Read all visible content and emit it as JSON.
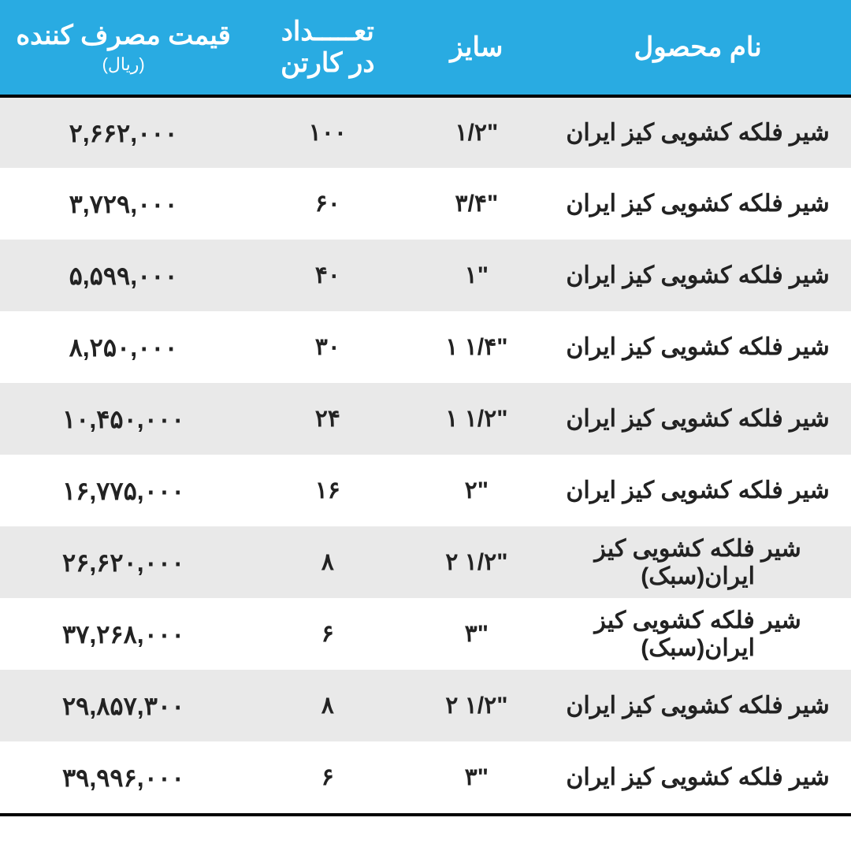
{
  "table": {
    "type": "table",
    "header_background": "#29abe2",
    "header_text_color": "#ffffff",
    "stripe_gray": "#e9e9e9",
    "stripe_white": "#ffffff",
    "border_color": "#000000",
    "text_color": "#222222",
    "header_fontsize": 34,
    "body_fontsize": 30,
    "columns": {
      "name": {
        "label": "نام محصول",
        "width_pct": 36
      },
      "size": {
        "label": "سایز",
        "width_pct": 16
      },
      "qty": {
        "label": "تعـــــداد",
        "label2": "در کارتن",
        "width_pct": 19
      },
      "price": {
        "label": "قیمت مصرف کننده",
        "sublabel": "(ریال)",
        "width_pct": 29
      }
    },
    "rows": [
      {
        "name": "شیر فلکه کشویی کیز ایران",
        "size": "۱/۲\"",
        "qty": "۱۰۰",
        "price": "۲,۶۶۲,۰۰۰",
        "stripe": "gray"
      },
      {
        "name": "شیر فلکه کشویی کیز ایران",
        "size": "۳/۴\"",
        "qty": "۶۰",
        "price": "۳,۷۲۹,۰۰۰",
        "stripe": "white"
      },
      {
        "name": "شیر فلکه کشویی کیز ایران",
        "size": "۱\"",
        "qty": "۴۰",
        "price": "۵,۵۹۹,۰۰۰",
        "stripe": "gray"
      },
      {
        "name": "شیر فلکه کشویی کیز ایران",
        "size": "۱ ۱/۴\"",
        "qty": "۳۰",
        "price": "۸,۲۵۰,۰۰۰",
        "stripe": "white"
      },
      {
        "name": "شیر فلکه کشویی کیز ایران",
        "size": "۱ ۱/۲\"",
        "qty": "۲۴",
        "price": "۱۰,۴۵۰,۰۰۰",
        "stripe": "gray"
      },
      {
        "name": "شیر فلکه کشویی کیز ایران",
        "size": "۲\"",
        "qty": "۱۶",
        "price": "۱۶,۷۷۵,۰۰۰",
        "stripe": "white"
      },
      {
        "name": "شیر فلکه کشویی کیز ایران(سبک)",
        "size": "۲ ۱/۲\"",
        "qty": "۸",
        "price": "۲۶,۶۲۰,۰۰۰",
        "stripe": "gray"
      },
      {
        "name": "شیر فلکه کشویی کیز ایران(سبک)",
        "size": "۳\"",
        "qty": "۶",
        "price": "۳۷,۲۶۸,۰۰۰",
        "stripe": "white"
      },
      {
        "name": "شیر فلکه کشویی کیز ایران",
        "size": "۲ ۱/۲\"",
        "qty": "۸",
        "price": "۲۹,۸۵۷,۳۰۰",
        "stripe": "gray"
      },
      {
        "name": "شیر فلکه کشویی کیز ایران",
        "size": "۳\"",
        "qty": "۶",
        "price": "۳۹,۹۹۶,۰۰۰",
        "stripe": "white"
      }
    ]
  }
}
